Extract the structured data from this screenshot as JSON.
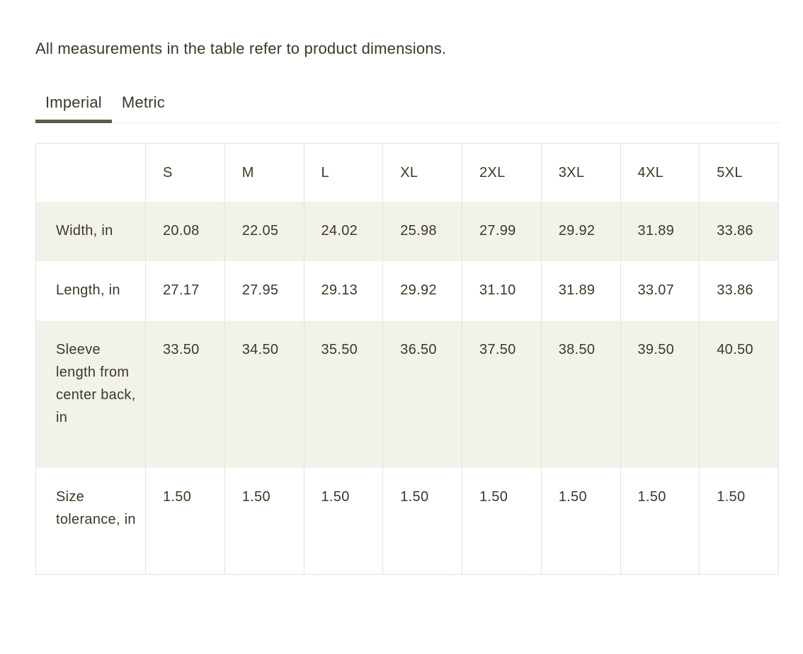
{
  "intro": "All measurements in the table refer to product dimensions.",
  "tabs": [
    {
      "label": "Imperial",
      "active": true
    },
    {
      "label": "Metric",
      "active": false
    }
  ],
  "table": {
    "columns": [
      "",
      "S",
      "M",
      "L",
      "XL",
      "2XL",
      "3XL",
      "4XL",
      "5XL"
    ],
    "rows": [
      {
        "label": "Width, in",
        "values": [
          "20.08",
          "22.05",
          "24.02",
          "25.98",
          "27.99",
          "29.92",
          "31.89",
          "33.86"
        ]
      },
      {
        "label": "Length, in",
        "values": [
          "27.17",
          "27.95",
          "29.13",
          "29.92",
          "31.10",
          "31.89",
          "33.07",
          "33.86"
        ]
      },
      {
        "label": "Sleeve length from center back, in",
        "values": [
          "33.50",
          "34.50",
          "35.50",
          "36.50",
          "37.50",
          "38.50",
          "39.50",
          "40.50"
        ]
      },
      {
        "label": "Size tolerance, in",
        "values": [
          "1.50",
          "1.50",
          "1.50",
          "1.50",
          "1.50",
          "1.50",
          "1.50",
          "1.50"
        ]
      }
    ]
  },
  "colors": {
    "text": "#3b3a26",
    "shaded_row_background": "#f2f2ea",
    "table_border": "#e4e3dd",
    "tab_rule": "#e9e8e3",
    "active_tab_underline": "#5e5c46"
  }
}
